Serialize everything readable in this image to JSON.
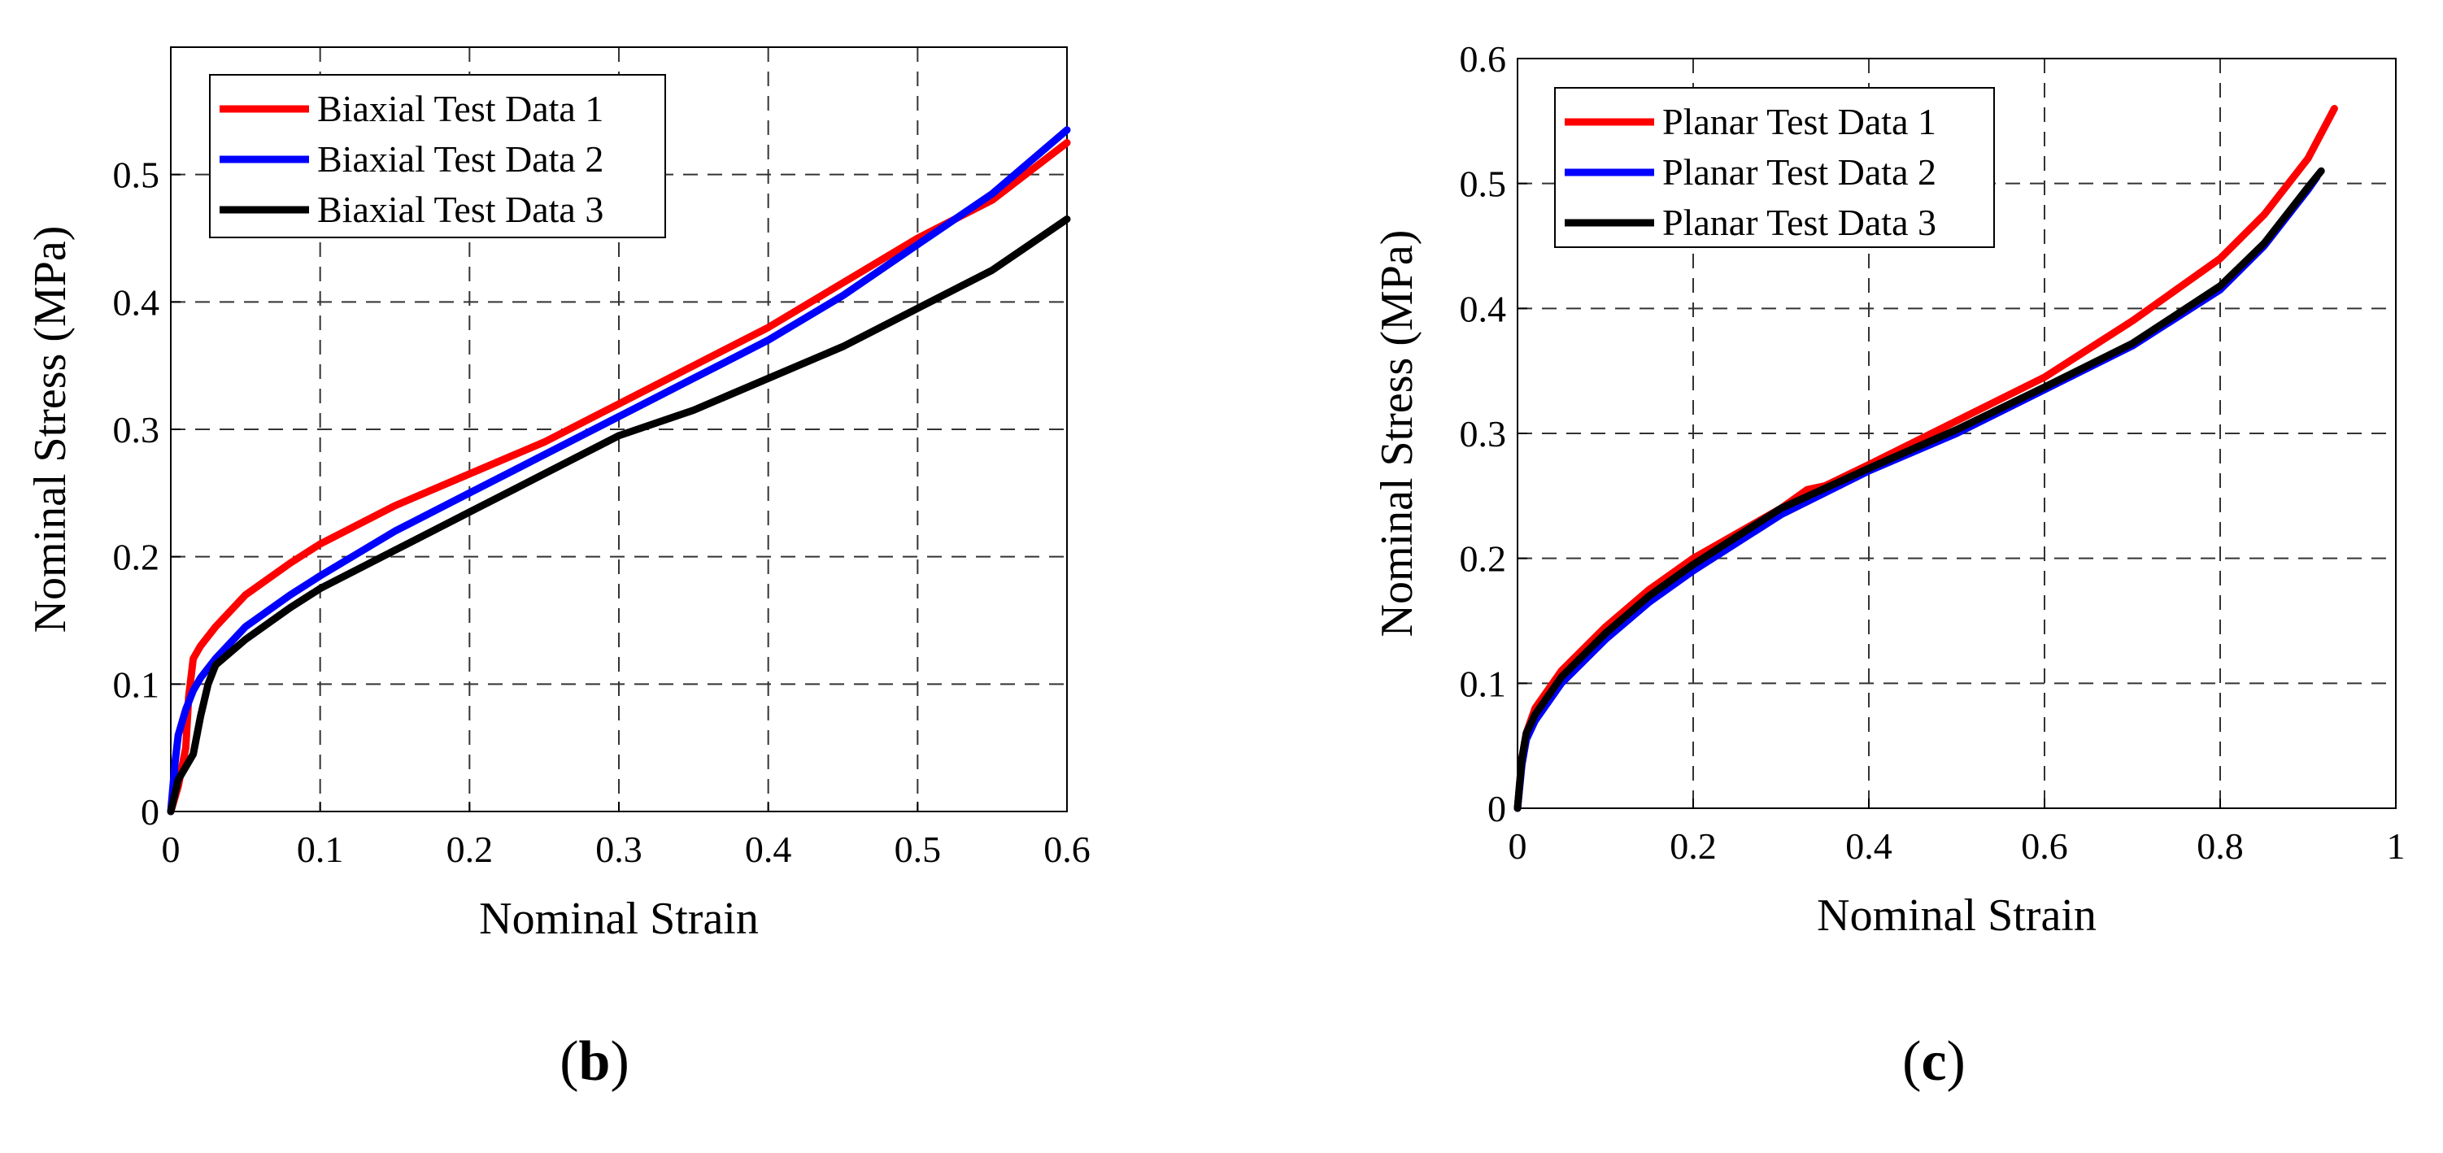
{
  "chart_data": [
    {
      "type": "line",
      "panel_label": "b",
      "xlabel": "Nominal Strain",
      "ylabel": "Nominal Stress (MPa)",
      "xlim": [
        0,
        0.6
      ],
      "ylim": [
        0,
        0.6
      ],
      "xticks": [
        0,
        0.1,
        0.2,
        0.3,
        0.4,
        0.5,
        0.6
      ],
      "xtick_labels": [
        "0",
        "0.1",
        "0.2",
        "0.3",
        "0.4",
        "0.5",
        "0.6"
      ],
      "yticks": [
        0,
        0.1,
        0.2,
        0.3,
        0.4,
        0.5
      ],
      "ytick_labels": [
        "0",
        "0.1",
        "0.2",
        "0.3",
        "0.4",
        "0.5"
      ],
      "grid": "dashed",
      "legend_position": "top-left",
      "series": [
        {
          "name": "Biaxial Test Data 1",
          "color": "#ff0000",
          "x": [
            0,
            0.005,
            0.01,
            0.012,
            0.015,
            0.02,
            0.03,
            0.05,
            0.08,
            0.1,
            0.15,
            0.2,
            0.25,
            0.3,
            0.35,
            0.4,
            0.45,
            0.5,
            0.55,
            0.6
          ],
          "y": [
            0,
            0.02,
            0.05,
            0.09,
            0.12,
            0.13,
            0.145,
            0.17,
            0.195,
            0.21,
            0.24,
            0.265,
            0.29,
            0.32,
            0.35,
            0.38,
            0.415,
            0.45,
            0.48,
            0.525
          ]
        },
        {
          "name": "Biaxial Test Data 2",
          "color": "#0000ff",
          "x": [
            0,
            0.003,
            0.005,
            0.01,
            0.015,
            0.02,
            0.03,
            0.05,
            0.08,
            0.1,
            0.15,
            0.2,
            0.25,
            0.3,
            0.35,
            0.4,
            0.45,
            0.5,
            0.55,
            0.6
          ],
          "y": [
            0,
            0.04,
            0.06,
            0.08,
            0.095,
            0.105,
            0.12,
            0.145,
            0.17,
            0.185,
            0.22,
            0.25,
            0.28,
            0.31,
            0.34,
            0.37,
            0.405,
            0.445,
            0.485,
            0.535
          ]
        },
        {
          "name": "Biaxial Test Data 3",
          "color": "#000000",
          "x": [
            0,
            0.005,
            0.01,
            0.015,
            0.02,
            0.025,
            0.03,
            0.05,
            0.08,
            0.1,
            0.15,
            0.2,
            0.25,
            0.3,
            0.35,
            0.4,
            0.45,
            0.5,
            0.55,
            0.6
          ],
          "y": [
            0,
            0.025,
            0.035,
            0.045,
            0.075,
            0.1,
            0.115,
            0.135,
            0.16,
            0.175,
            0.205,
            0.235,
            0.265,
            0.295,
            0.315,
            0.34,
            0.365,
            0.395,
            0.425,
            0.465
          ]
        }
      ]
    },
    {
      "type": "line",
      "panel_label": "c",
      "xlabel": "Nominal Strain",
      "ylabel": "Nominal Stress (MPa)",
      "xlim": [
        0,
        1
      ],
      "ylim": [
        0,
        0.6
      ],
      "xticks": [
        0,
        0.2,
        0.4,
        0.6,
        0.8,
        1
      ],
      "xtick_labels": [
        "0",
        "0.2",
        "0.4",
        "0.6",
        "0.8",
        "1"
      ],
      "yticks": [
        0,
        0.1,
        0.2,
        0.3,
        0.4,
        0.5,
        0.6
      ],
      "ytick_labels": [
        "0",
        "0.1",
        "0.2",
        "0.3",
        "0.4",
        "0.5",
        "0.6"
      ],
      "grid": "dashed",
      "legend_position": "top-left",
      "series": [
        {
          "name": "Planar Test Data 1",
          "color": "#ff0000",
          "x": [
            0,
            0.005,
            0.01,
            0.02,
            0.05,
            0.1,
            0.15,
            0.2,
            0.3,
            0.33,
            0.35,
            0.4,
            0.5,
            0.6,
            0.7,
            0.8,
            0.85,
            0.9,
            0.93
          ],
          "y": [
            0,
            0.04,
            0.06,
            0.08,
            0.11,
            0.145,
            0.175,
            0.2,
            0.24,
            0.255,
            0.258,
            0.275,
            0.31,
            0.345,
            0.39,
            0.44,
            0.475,
            0.52,
            0.56
          ]
        },
        {
          "name": "Planar Test Data 2",
          "color": "#0000ff",
          "x": [
            0,
            0.005,
            0.01,
            0.02,
            0.05,
            0.1,
            0.15,
            0.2,
            0.3,
            0.4,
            0.5,
            0.6,
            0.7,
            0.8,
            0.85,
            0.9,
            0.91
          ],
          "y": [
            0,
            0.035,
            0.055,
            0.07,
            0.1,
            0.135,
            0.165,
            0.19,
            0.235,
            0.27,
            0.3,
            0.335,
            0.37,
            0.415,
            0.45,
            0.495,
            0.505
          ]
        },
        {
          "name": "Planar Test Data 3",
          "color": "#000000",
          "x": [
            0,
            0.005,
            0.01,
            0.02,
            0.05,
            0.1,
            0.15,
            0.2,
            0.3,
            0.4,
            0.5,
            0.6,
            0.7,
            0.8,
            0.85,
            0.9,
            0.915
          ],
          "y": [
            0,
            0.04,
            0.06,
            0.075,
            0.105,
            0.14,
            0.17,
            0.195,
            0.24,
            0.272,
            0.303,
            0.337,
            0.372,
            0.418,
            0.452,
            0.497,
            0.51
          ]
        }
      ]
    }
  ]
}
